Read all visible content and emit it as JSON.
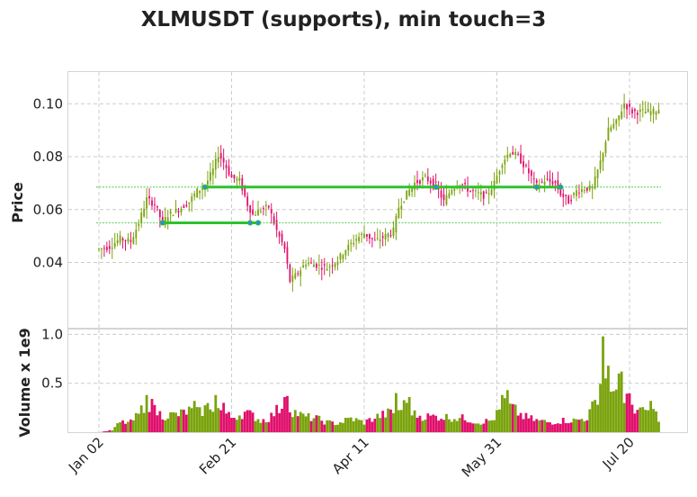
{
  "chart_data": {
    "type": "candlestick",
    "title": "XLMUSDT (supports), min touch=3",
    "price_panel": {
      "ylabel": "Price",
      "ylim": [
        0.015,
        0.112
      ],
      "yticks": [
        "0.04",
        "0.06",
        "0.08",
        "0.10"
      ],
      "grid": true
    },
    "volume_panel": {
      "ylabel": "Volume x 1e9",
      "ylim": [
        0,
        1.05
      ],
      "yticks": [
        "0.5",
        "1.0"
      ],
      "grid": true
    },
    "xtick_labels": [
      "Jan 02",
      "Feb 21",
      "Apr 11",
      "May 31",
      "Jul 20"
    ],
    "xtick_index": [
      0,
      50,
      100,
      150,
      200
    ],
    "n_days": 212,
    "colors": {
      "up": "#7aa30d",
      "down": "#e0106c",
      "support": "#2ec22e",
      "touch": "#2a8fd9",
      "grid": "#cccccc"
    },
    "support_levels": [
      {
        "level": 0.0685,
        "start_index": 40,
        "end_index": 174,
        "touch_indices": [
          40,
          127,
          165,
          174
        ]
      },
      {
        "level": 0.055,
        "start_index": 24,
        "end_index": 60,
        "touch_indices": [
          24,
          57,
          60
        ]
      }
    ],
    "price_anchors": [
      [
        0,
        0.045
      ],
      [
        4,
        0.046
      ],
      [
        8,
        0.049
      ],
      [
        12,
        0.048
      ],
      [
        15,
        0.055
      ],
      [
        18,
        0.064
      ],
      [
        21,
        0.062
      ],
      [
        24,
        0.055
      ],
      [
        26,
        0.058
      ],
      [
        30,
        0.06
      ],
      [
        34,
        0.063
      ],
      [
        37,
        0.067
      ],
      [
        40,
        0.069
      ],
      [
        43,
        0.075
      ],
      [
        45,
        0.081
      ],
      [
        47,
        0.078
      ],
      [
        50,
        0.072
      ],
      [
        53,
        0.071
      ],
      [
        56,
        0.062
      ],
      [
        58,
        0.058
      ],
      [
        61,
        0.06
      ],
      [
        64,
        0.061
      ],
      [
        67,
        0.052
      ],
      [
        70,
        0.045
      ],
      [
        72,
        0.033
      ],
      [
        75,
        0.036
      ],
      [
        78,
        0.04
      ],
      [
        82,
        0.039
      ],
      [
        86,
        0.038
      ],
      [
        90,
        0.041
      ],
      [
        93,
        0.045
      ],
      [
        97,
        0.049
      ],
      [
        100,
        0.051
      ],
      [
        104,
        0.048
      ],
      [
        108,
        0.05
      ],
      [
        111,
        0.052
      ],
      [
        113,
        0.061
      ],
      [
        116,
        0.066
      ],
      [
        119,
        0.07
      ],
      [
        123,
        0.072
      ],
      [
        127,
        0.069
      ],
      [
        130,
        0.063
      ],
      [
        133,
        0.068
      ],
      [
        136,
        0.07
      ],
      [
        140,
        0.067
      ],
      [
        143,
        0.066
      ],
      [
        146,
        0.065
      ],
      [
        149,
        0.07
      ],
      [
        152,
        0.078
      ],
      [
        155,
        0.082
      ],
      [
        158,
        0.08
      ],
      [
        162,
        0.074
      ],
      [
        165,
        0.069
      ],
      [
        168,
        0.071
      ],
      [
        172,
        0.07
      ],
      [
        174,
        0.066
      ],
      [
        177,
        0.063
      ],
      [
        180,
        0.067
      ],
      [
        183,
        0.068
      ],
      [
        186,
        0.068
      ],
      [
        189,
        0.078
      ],
      [
        192,
        0.09
      ],
      [
        195,
        0.093
      ],
      [
        198,
        0.1
      ],
      [
        201,
        0.097
      ],
      [
        205,
        0.097
      ],
      [
        209,
        0.097
      ],
      [
        211,
        0.098
      ]
    ],
    "volume_anchors": [
      [
        0,
        0.0
      ],
      [
        5,
        0.02
      ],
      [
        8,
        0.1
      ],
      [
        12,
        0.1
      ],
      [
        15,
        0.18
      ],
      [
        18,
        0.32
      ],
      [
        21,
        0.22
      ],
      [
        24,
        0.17
      ],
      [
        30,
        0.18
      ],
      [
        34,
        0.22
      ],
      [
        38,
        0.2
      ],
      [
        42,
        0.28
      ],
      [
        46,
        0.22
      ],
      [
        50,
        0.15
      ],
      [
        55,
        0.2
      ],
      [
        58,
        0.17
      ],
      [
        61,
        0.12
      ],
      [
        64,
        0.14
      ],
      [
        67,
        0.22
      ],
      [
        70,
        0.3
      ],
      [
        73,
        0.22
      ],
      [
        77,
        0.16
      ],
      [
        82,
        0.14
      ],
      [
        86,
        0.1
      ],
      [
        90,
        0.09
      ],
      [
        95,
        0.14
      ],
      [
        100,
        0.1
      ],
      [
        105,
        0.16
      ],
      [
        110,
        0.2
      ],
      [
        113,
        0.22
      ],
      [
        116,
        0.3
      ],
      [
        119,
        0.18
      ],
      [
        123,
        0.16
      ],
      [
        128,
        0.16
      ],
      [
        133,
        0.15
      ],
      [
        138,
        0.14
      ],
      [
        143,
        0.1
      ],
      [
        148,
        0.12
      ],
      [
        150,
        0.18
      ],
      [
        153,
        0.3
      ],
      [
        156,
        0.24
      ],
      [
        160,
        0.16
      ],
      [
        165,
        0.12
      ],
      [
        170,
        0.1
      ],
      [
        175,
        0.12
      ],
      [
        180,
        0.12
      ],
      [
        184,
        0.15
      ],
      [
        187,
        0.3
      ],
      [
        190,
        0.6
      ],
      [
        193,
        0.45
      ],
      [
        196,
        0.4
      ],
      [
        199,
        0.35
      ],
      [
        202,
        0.25
      ],
      [
        205,
        0.2
      ],
      [
        208,
        0.24
      ],
      [
        211,
        0.15
      ]
    ],
    "volume_peaks": [
      [
        18,
        0.38
      ],
      [
        20,
        0.34
      ],
      [
        36,
        0.32
      ],
      [
        44,
        0.38
      ],
      [
        47,
        0.3
      ],
      [
        70,
        0.36
      ],
      [
        71,
        0.37
      ],
      [
        112,
        0.4
      ],
      [
        117,
        0.36
      ],
      [
        152,
        0.38
      ],
      [
        154,
        0.43
      ],
      [
        190,
        0.98
      ],
      [
        191,
        0.55
      ],
      [
        192,
        0.68
      ],
      [
        194,
        0.42
      ],
      [
        196,
        0.6
      ],
      [
        197,
        0.62
      ],
      [
        208,
        0.32
      ]
    ]
  }
}
